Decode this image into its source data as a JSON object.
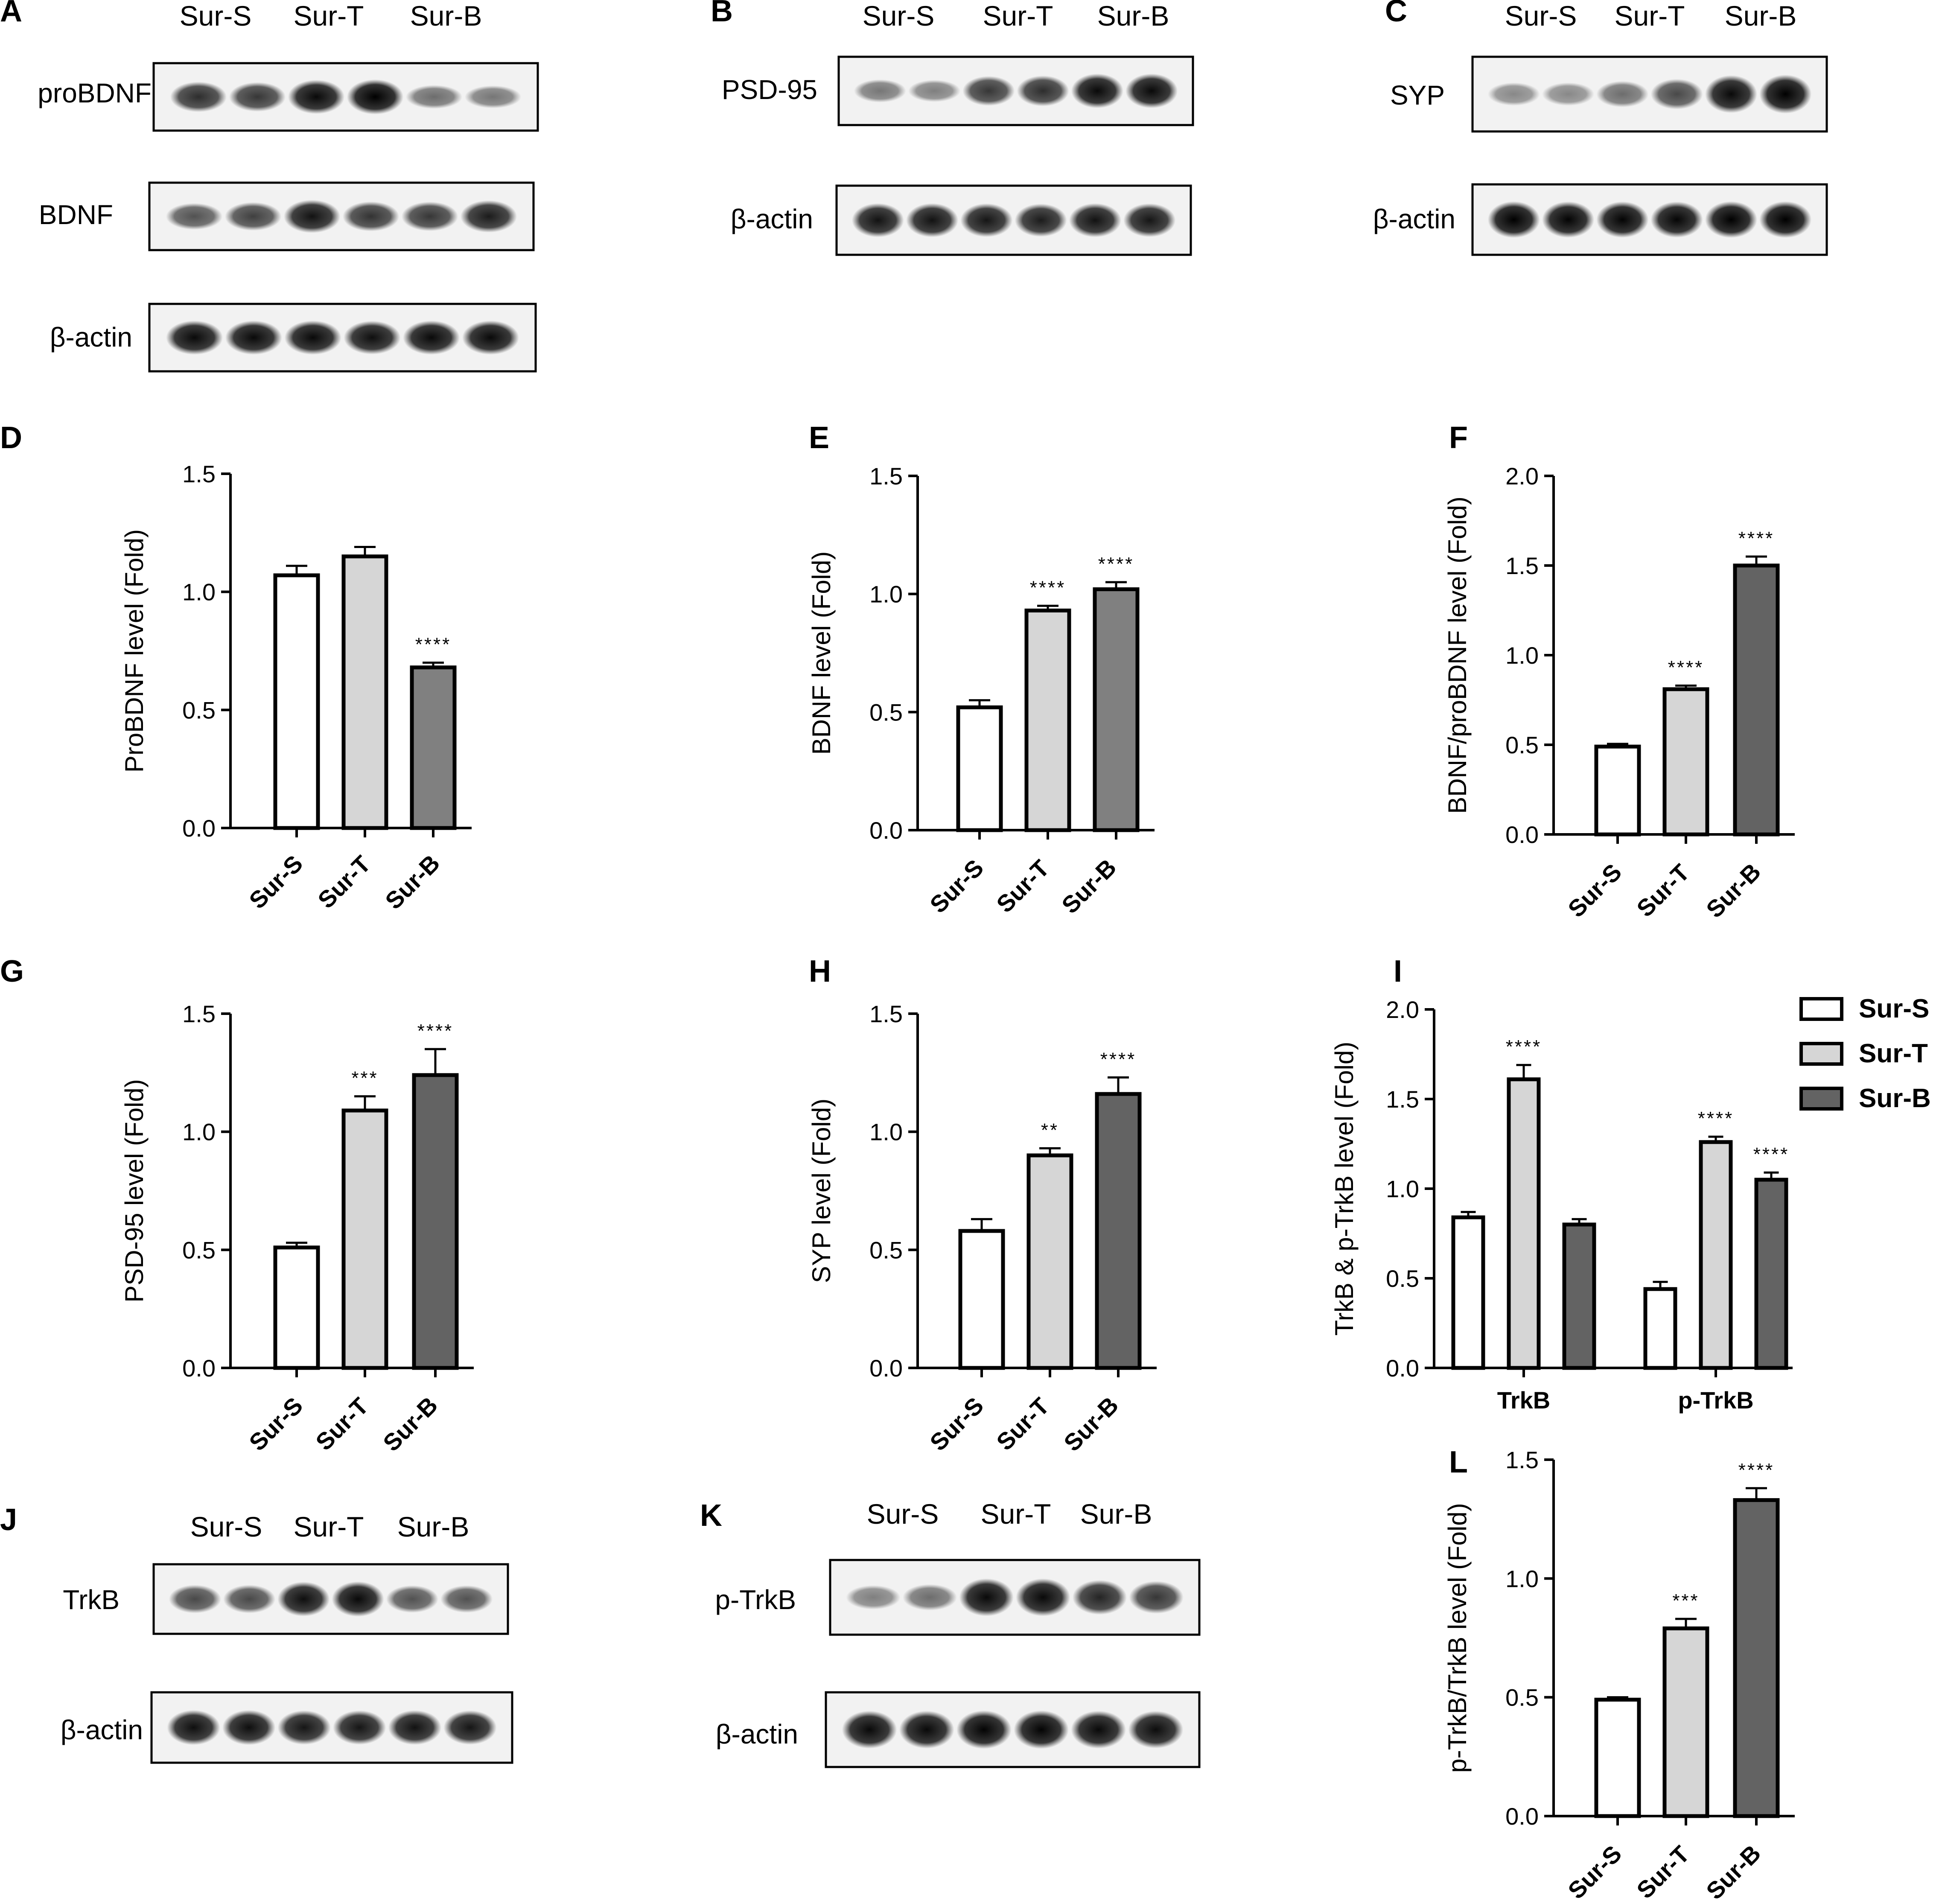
{
  "colors": {
    "sur_s": "#ffffff",
    "sur_t": "#d6d6d6",
    "sur_b": "#636363",
    "sur_b_mid": "#808080",
    "axis": "#000000",
    "band": "#1a1a1a"
  },
  "groups": [
    "Sur-S",
    "Sur-T",
    "Sur-B"
  ],
  "blots": [
    {
      "panel": "A",
      "header": [
        "Sur-S",
        "Sur-T",
        "Sur-B"
      ],
      "rows": [
        {
          "label": "proBDNF",
          "intensity": [
            0.75,
            0.7,
            0.95,
            1.0,
            0.4,
            0.35
          ]
        },
        {
          "label": "BDNF",
          "intensity": [
            0.55,
            0.65,
            0.9,
            0.72,
            0.7,
            0.85
          ]
        },
        {
          "label": "β-actin",
          "intensity": [
            0.95,
            0.95,
            0.95,
            0.92,
            0.95,
            0.95
          ]
        }
      ]
    },
    {
      "panel": "B",
      "header": [
        "Sur-S",
        "Sur-T",
        "Sur-B"
      ],
      "rows": [
        {
          "label": "PSD-95",
          "intensity": [
            0.35,
            0.3,
            0.7,
            0.75,
            0.95,
            0.95
          ]
        },
        {
          "label": "β-actin",
          "intensity": [
            0.9,
            0.9,
            0.88,
            0.85,
            0.9,
            0.88
          ]
        }
      ]
    },
    {
      "panel": "C",
      "header": [
        "Sur-S",
        "Sur-T",
        "Sur-B"
      ],
      "rows": [
        {
          "label": "SYP",
          "intensity": [
            0.25,
            0.25,
            0.4,
            0.6,
            0.95,
            1.0
          ]
        },
        {
          "label": "β-actin",
          "intensity": [
            1.0,
            0.98,
            0.98,
            0.97,
            1.0,
            1.0
          ]
        }
      ]
    },
    {
      "panel": "J",
      "header": [
        "Sur-S",
        "Sur-T",
        "Sur-B"
      ],
      "rows": [
        {
          "label": "TrkB",
          "intensity": [
            0.6,
            0.6,
            0.92,
            0.95,
            0.55,
            0.55
          ]
        },
        {
          "label": "β-actin",
          "intensity": [
            0.92,
            0.92,
            0.88,
            0.88,
            0.9,
            0.88
          ]
        }
      ]
    },
    {
      "panel": "K",
      "header": [
        "Sur-S",
        "Sur-T",
        "Sur-B"
      ],
      "rows": [
        {
          "label": "p-TrkB",
          "intensity": [
            0.3,
            0.4,
            0.95,
            0.95,
            0.8,
            0.7
          ]
        },
        {
          "label": "β-actin",
          "intensity": [
            0.95,
            0.95,
            0.98,
            0.98,
            0.95,
            0.93
          ]
        }
      ]
    }
  ],
  "chart_data": [
    {
      "panel": "D",
      "type": "bar",
      "categories": [
        "Sur-S",
        "Sur-T",
        "Sur-B"
      ],
      "values": [
        1.07,
        1.15,
        0.68
      ],
      "errors": [
        0.04,
        0.04,
        0.02
      ],
      "significance": [
        "",
        "",
        "****"
      ],
      "ylabel": "ProBDNF level (Fold)",
      "ylim": [
        0,
        1.5
      ],
      "yticks": [
        "0.0",
        "0.5",
        "1.0",
        "1.5"
      ]
    },
    {
      "panel": "E",
      "type": "bar",
      "categories": [
        "Sur-S",
        "Sur-T",
        "Sur-B"
      ],
      "values": [
        0.52,
        0.93,
        1.02
      ],
      "errors": [
        0.03,
        0.02,
        0.03
      ],
      "significance": [
        "",
        "****",
        "****"
      ],
      "ylabel": "BDNF level (Fold)",
      "ylim": [
        0,
        1.5
      ],
      "yticks": [
        "0.0",
        "0.5",
        "1.0",
        "1.5"
      ]
    },
    {
      "panel": "F",
      "type": "bar",
      "categories": [
        "Sur-S",
        "Sur-T",
        "Sur-B"
      ],
      "values": [
        0.49,
        0.81,
        1.5
      ],
      "errors": [
        0.015,
        0.02,
        0.05
      ],
      "significance": [
        "",
        "****",
        "****"
      ],
      "ylabel": "BDNF/proBDNF level (Fold)",
      "ylim": [
        0,
        2.0
      ],
      "yticks": [
        "0.0",
        "0.5",
        "1.0",
        "1.5",
        "2.0"
      ]
    },
    {
      "panel": "G",
      "type": "bar",
      "categories": [
        "Sur-S",
        "Sur-T",
        "Sur-B"
      ],
      "values": [
        0.51,
        1.09,
        1.24
      ],
      "errors": [
        0.02,
        0.06,
        0.11
      ],
      "significance": [
        "",
        "***",
        "****"
      ],
      "ylabel": "PSD-95 level (Fold)",
      "ylim": [
        0,
        1.5
      ],
      "yticks": [
        "0.0",
        "0.5",
        "1.0",
        "1.5"
      ]
    },
    {
      "panel": "H",
      "type": "bar",
      "categories": [
        "Sur-S",
        "Sur-T",
        "Sur-B"
      ],
      "values": [
        0.58,
        0.9,
        1.16
      ],
      "errors": [
        0.05,
        0.03,
        0.07
      ],
      "significance": [
        "",
        "**",
        "****"
      ],
      "ylabel": "SYP level (Fold)",
      "ylim": [
        0,
        1.5
      ],
      "yticks": [
        "0.0",
        "0.5",
        "1.0",
        "1.5"
      ]
    },
    {
      "panel": "I",
      "type": "bar",
      "categories": [
        "TrkB",
        "p-TrkB"
      ],
      "series": [
        {
          "name": "Sur-S",
          "values": [
            0.84,
            0.44
          ],
          "errors": [
            0.03,
            0.04
          ],
          "significance": [
            "",
            ""
          ]
        },
        {
          "name": "Sur-T",
          "values": [
            1.61,
            1.26
          ],
          "errors": [
            0.08,
            0.03
          ],
          "significance": [
            "****",
            "****"
          ]
        },
        {
          "name": "Sur-B",
          "values": [
            0.8,
            1.05
          ],
          "errors": [
            0.03,
            0.04
          ],
          "significance": [
            "",
            "****"
          ]
        }
      ],
      "ylabel": "TrkB & p-TrkB level (Fold)",
      "ylim": [
        0,
        2.0
      ],
      "yticks": [
        "0.0",
        "0.5",
        "1.0",
        "1.5",
        "2.0"
      ],
      "legend": "right"
    },
    {
      "panel": "L",
      "type": "bar",
      "categories": [
        "Sur-S",
        "Sur-T",
        "Sur-B"
      ],
      "values": [
        0.49,
        0.79,
        1.33
      ],
      "errors": [
        0.01,
        0.04,
        0.05
      ],
      "significance": [
        "",
        "***",
        "****"
      ],
      "ylabel": "p-TrkB/TrkB level (Fold)",
      "ylim": [
        0,
        1.5
      ],
      "yticks": [
        "0.0",
        "0.5",
        "1.0",
        "1.5"
      ]
    }
  ]
}
